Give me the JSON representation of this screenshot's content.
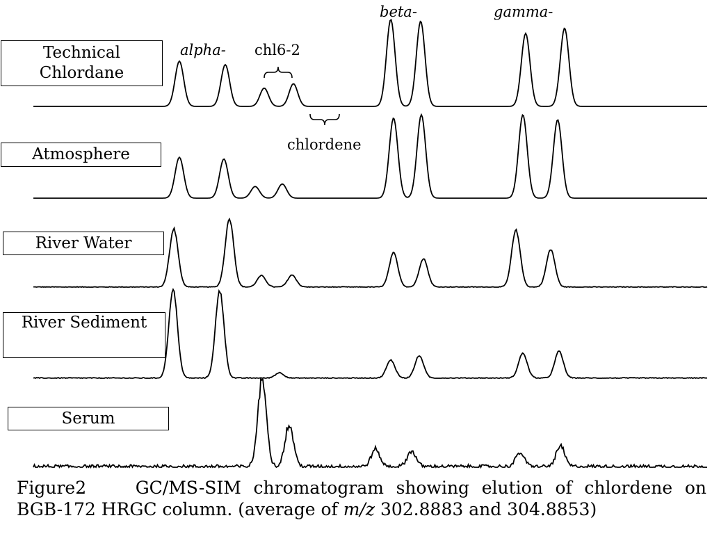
{
  "chart_data": {
    "type": "line",
    "title": "",
    "xlabel": "",
    "ylabel": "",
    "grid": false,
    "legend": "none",
    "peak_labels": {
      "alpha": "alpha-",
      "chl62": "chl6-2",
      "chlordene": "chlordene",
      "beta": "beta-",
      "gamma": "gamma-"
    },
    "peak_positions": [
      258,
      324,
      380,
      422,
      562,
      605,
      756,
      812
    ],
    "series": [
      {
        "name": "Technical\nChlordane",
        "peaks": [
          {
            "x": 258,
            "h": 0.52
          },
          {
            "x": 324,
            "h": 0.48
          },
          {
            "x": 380,
            "h": 0.21
          },
          {
            "x": 422,
            "h": 0.26
          },
          {
            "x": 562,
            "h": 1.0
          },
          {
            "x": 605,
            "h": 0.98
          },
          {
            "x": 756,
            "h": 0.84
          },
          {
            "x": 812,
            "h": 0.9
          }
        ],
        "noise": 0.0
      },
      {
        "name": "Atmosphere",
        "peaks": [
          {
            "x": 258,
            "h": 0.49
          },
          {
            "x": 322,
            "h": 0.47
          },
          {
            "x": 367,
            "h": 0.14
          },
          {
            "x": 406,
            "h": 0.17
          },
          {
            "x": 566,
            "h": 0.96
          },
          {
            "x": 606,
            "h": 1.0
          },
          {
            "x": 752,
            "h": 1.0
          },
          {
            "x": 802,
            "h": 0.94
          }
        ],
        "noise": 0.0
      },
      {
        "name": "River Water",
        "peaks": [
          {
            "x": 250,
            "h": 0.82
          },
          {
            "x": 330,
            "h": 0.96
          },
          {
            "x": 376,
            "h": 0.16
          },
          {
            "x": 420,
            "h": 0.17
          },
          {
            "x": 566,
            "h": 0.48
          },
          {
            "x": 609,
            "h": 0.4
          },
          {
            "x": 742,
            "h": 0.8
          },
          {
            "x": 792,
            "h": 0.53
          }
        ],
        "noise": 0.03
      },
      {
        "name": "River Sediment",
        "peaks": [
          {
            "x": 249,
            "h": 1.0
          },
          {
            "x": 316,
            "h": 0.98
          },
          {
            "x": 402,
            "h": 0.06
          },
          {
            "x": 562,
            "h": 0.2
          },
          {
            "x": 603,
            "h": 0.25
          },
          {
            "x": 752,
            "h": 0.28
          },
          {
            "x": 804,
            "h": 0.3
          }
        ],
        "noise": 0.03
      },
      {
        "name": "Serum",
        "peaks": [
          {
            "x": 377,
            "h": 1.0
          },
          {
            "x": 416,
            "h": 0.48
          },
          {
            "x": 540,
            "h": 0.2
          },
          {
            "x": 592,
            "h": 0.18
          },
          {
            "x": 748,
            "h": 0.16
          },
          {
            "x": 806,
            "h": 0.24
          }
        ],
        "noise": 0.12
      }
    ]
  },
  "caption": {
    "line1": "Figure2    GC/MS-SIM chromatogram showing elution of chlordene on",
    "line2_pre": "BGB-172 HRGC column. (average of ",
    "line2_em": "m/z",
    "line2_post": " 302.8883 and 304.8853)"
  }
}
